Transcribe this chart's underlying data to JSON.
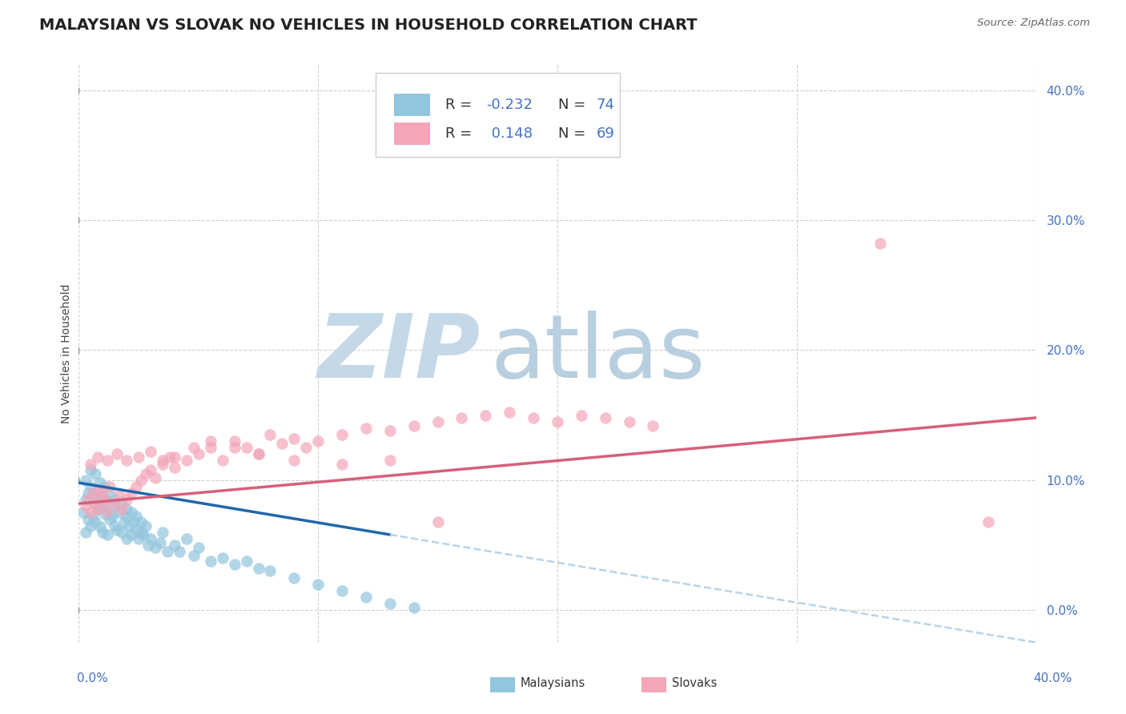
{
  "title": "MALAYSIAN VS SLOVAK NO VEHICLES IN HOUSEHOLD CORRELATION CHART",
  "source": "Source: ZipAtlas.com",
  "ylabel": "No Vehicles in Household",
  "xlim": [
    0.0,
    0.4
  ],
  "ylim": [
    -0.025,
    0.42
  ],
  "yticks": [
    0.0,
    0.1,
    0.2,
    0.3,
    0.4
  ],
  "ytick_labels": [
    "0.0%",
    "10.0%",
    "20.0%",
    "30.0%",
    "40.0%"
  ],
  "color_malaysian": "#92c5de",
  "color_slovak": "#f4a6b8",
  "color_line_malaysian": "#2166ac",
  "color_line_slovak": "#d6607a",
  "color_dashed_extension": "#b8d4ea",
  "watermark_zip": "ZIP",
  "watermark_atlas": "atlas",
  "watermark_color_zip": "#c5d8e8",
  "watermark_color_atlas": "#b8cfe0",
  "background_color": "#ffffff",
  "grid_color": "#d0d0d0",
  "tick_color": "#4472c4",
  "title_fontsize": 14,
  "axis_label_fontsize": 10,
  "tick_fontsize": 11,
  "legend_fontsize": 13,
  "malay_r": "-0.232",
  "malay_n": "74",
  "slovak_r": "0.148",
  "slovak_n": "69",
  "malay_line_x0": 0.0,
  "malay_line_y0": 0.098,
  "malay_line_x1": 0.14,
  "malay_line_y1": 0.055,
  "malay_line_solid_end": 0.13,
  "malay_line_x_ext": 0.4,
  "malay_line_y_ext": -0.012,
  "slovak_line_x0": 0.0,
  "slovak_line_y0": 0.082,
  "slovak_line_x1": 0.4,
  "slovak_line_y1": 0.148,
  "malaysian_x": [
    0.002,
    0.003,
    0.003,
    0.004,
    0.004,
    0.005,
    0.005,
    0.006,
    0.006,
    0.007,
    0.007,
    0.008,
    0.008,
    0.009,
    0.009,
    0.01,
    0.01,
    0.011,
    0.011,
    0.012,
    0.012,
    0.013,
    0.014,
    0.015,
    0.015,
    0.016,
    0.017,
    0.018,
    0.019,
    0.02,
    0.02,
    0.021,
    0.022,
    0.023,
    0.024,
    0.025,
    0.026,
    0.027,
    0.028,
    0.029,
    0.03,
    0.032,
    0.034,
    0.035,
    0.037,
    0.04,
    0.042,
    0.045,
    0.048,
    0.05,
    0.055,
    0.06,
    0.065,
    0.07,
    0.075,
    0.08,
    0.09,
    0.1,
    0.11,
    0.12,
    0.003,
    0.005,
    0.007,
    0.009,
    0.011,
    0.013,
    0.015,
    0.018,
    0.02,
    0.022,
    0.024,
    0.026,
    0.13,
    0.14
  ],
  "malaysian_y": [
    0.075,
    0.085,
    0.06,
    0.09,
    0.07,
    0.095,
    0.065,
    0.088,
    0.072,
    0.082,
    0.068,
    0.092,
    0.078,
    0.086,
    0.064,
    0.08,
    0.06,
    0.085,
    0.074,
    0.076,
    0.058,
    0.07,
    0.072,
    0.065,
    0.08,
    0.062,
    0.075,
    0.06,
    0.068,
    0.072,
    0.055,
    0.065,
    0.058,
    0.068,
    0.062,
    0.055,
    0.06,
    0.058,
    0.065,
    0.05,
    0.055,
    0.048,
    0.052,
    0.06,
    0.045,
    0.05,
    0.045,
    0.055,
    0.042,
    0.048,
    0.038,
    0.04,
    0.035,
    0.038,
    0.032,
    0.03,
    0.025,
    0.02,
    0.015,
    0.01,
    0.1,
    0.108,
    0.105,
    0.098,
    0.095,
    0.09,
    0.085,
    0.082,
    0.078,
    0.075,
    0.072,
    0.068,
    0.005,
    0.002
  ],
  "slovak_x": [
    0.003,
    0.004,
    0.005,
    0.006,
    0.007,
    0.008,
    0.009,
    0.01,
    0.011,
    0.012,
    0.013,
    0.015,
    0.017,
    0.018,
    0.02,
    0.022,
    0.024,
    0.026,
    0.028,
    0.03,
    0.032,
    0.035,
    0.038,
    0.04,
    0.045,
    0.05,
    0.055,
    0.06,
    0.065,
    0.07,
    0.075,
    0.08,
    0.085,
    0.09,
    0.095,
    0.1,
    0.11,
    0.12,
    0.13,
    0.14,
    0.15,
    0.16,
    0.17,
    0.18,
    0.19,
    0.2,
    0.21,
    0.22,
    0.23,
    0.24,
    0.005,
    0.008,
    0.012,
    0.016,
    0.02,
    0.025,
    0.03,
    0.035,
    0.04,
    0.048,
    0.055,
    0.065,
    0.075,
    0.09,
    0.11,
    0.13,
    0.15,
    0.335,
    0.38
  ],
  "slovak_y": [
    0.08,
    0.085,
    0.075,
    0.09,
    0.082,
    0.078,
    0.092,
    0.088,
    0.084,
    0.076,
    0.095,
    0.082,
    0.088,
    0.078,
    0.085,
    0.09,
    0.095,
    0.1,
    0.105,
    0.108,
    0.102,
    0.112,
    0.118,
    0.11,
    0.115,
    0.12,
    0.125,
    0.115,
    0.13,
    0.125,
    0.12,
    0.135,
    0.128,
    0.132,
    0.125,
    0.13,
    0.135,
    0.14,
    0.138,
    0.142,
    0.145,
    0.148,
    0.15,
    0.152,
    0.148,
    0.145,
    0.15,
    0.148,
    0.145,
    0.142,
    0.112,
    0.118,
    0.115,
    0.12,
    0.115,
    0.118,
    0.122,
    0.115,
    0.118,
    0.125,
    0.13,
    0.125,
    0.12,
    0.115,
    0.112,
    0.115,
    0.068,
    0.282,
    0.068
  ]
}
